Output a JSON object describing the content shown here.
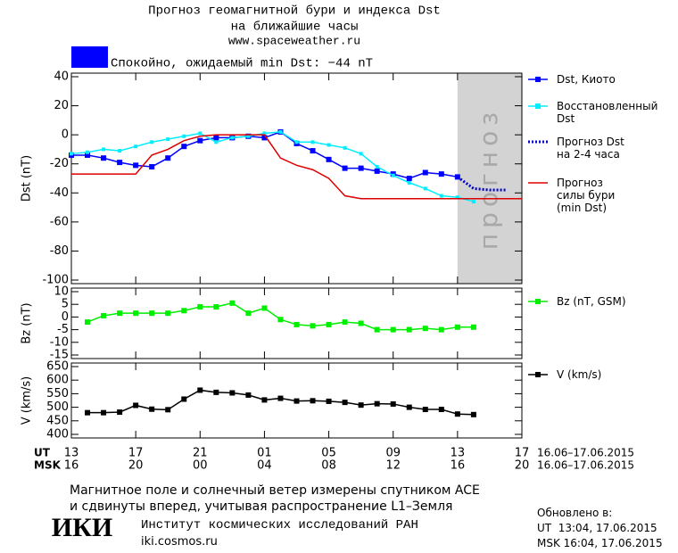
{
  "header": {
    "title": "Прогноз геомагнитной бури и индекса Dst",
    "subtitle": "на ближайшие часы",
    "url": "www.spaceweather.ru",
    "status": "Спокойно, ожидаемый min Dst: −44 nT",
    "status_color": "#0000ff"
  },
  "chart_data": [
    {
      "type": "line",
      "ylabel": "Dst (nT)",
      "xlim": [
        0,
        28
      ],
      "xticks": [
        0,
        4,
        8,
        12,
        16,
        20,
        24,
        28
      ],
      "ylim": [
        -100,
        40
      ],
      "yticks": [
        40,
        20,
        0,
        -20,
        -40,
        -60,
        -80,
        -100
      ],
      "forecast_region": [
        24,
        28
      ],
      "forecast_color": "#d3d3d3",
      "forecast_label": "прогноз",
      "series": [
        {
          "name": "Dst, Киото",
          "color": "#0000ff",
          "marker": "square",
          "style": "solid",
          "x": [
            0,
            1,
            2,
            3,
            4,
            5,
            6,
            7,
            8,
            9,
            10,
            11,
            12,
            13,
            14,
            15,
            16,
            17,
            18,
            19,
            20,
            21,
            22,
            23,
            24
          ],
          "values": [
            -14,
            -14,
            -16,
            -19,
            -21,
            -22,
            -16,
            -8,
            -4,
            -2,
            -2,
            -1,
            -2,
            2,
            -6,
            -11,
            -17,
            -23,
            -23,
            -25,
            -27,
            -30,
            -26,
            -27,
            -29
          ]
        },
        {
          "name": "Восстановленный\nDst",
          "color": "#00eeff",
          "marker": "small-square",
          "style": "solid",
          "x": [
            0,
            1,
            2,
            3,
            4,
            5,
            6,
            7,
            8,
            9,
            10,
            11,
            12,
            13,
            14,
            15,
            16,
            17,
            18,
            19,
            20,
            21,
            22,
            23,
            24,
            25
          ],
          "values": [
            -13,
            -12,
            -10,
            -11,
            -8,
            -5,
            -3,
            -1,
            1,
            -5,
            -2,
            -1,
            1,
            2,
            -5,
            -5,
            -7,
            -9,
            -13,
            -22,
            -28,
            -33,
            -37,
            -42,
            -43,
            -46
          ]
        },
        {
          "name": "Прогноз Dst\nна 2-4 часа",
          "color": "#0000cc",
          "marker": "none",
          "style": "dotted",
          "x": [
            24,
            25,
            26,
            27
          ],
          "values": [
            -29,
            -37,
            -38,
            -38
          ]
        },
        {
          "name": "Прогноз\nсилы бури\n(min Dst)",
          "color": "#dd0000",
          "marker": "none",
          "style": "solid",
          "x": [
            0,
            4,
            5,
            6,
            7,
            8,
            9,
            10,
            11,
            12,
            13,
            14,
            15,
            16,
            17,
            18,
            19,
            20,
            28
          ],
          "values": [
            -27,
            -27,
            -14,
            -10,
            -4,
            -1,
            0,
            0,
            0,
            0,
            -16,
            -21,
            -24,
            -30,
            -42,
            -44,
            -44,
            -44,
            -44
          ]
        }
      ]
    },
    {
      "type": "line",
      "ylabel": "Bz (nT)",
      "xlim": [
        0,
        28
      ],
      "xticks": [
        0,
        4,
        8,
        12,
        16,
        20,
        24,
        28
      ],
      "ylim": [
        -15,
        10
      ],
      "yticks": [
        10,
        5,
        0,
        -5,
        -10,
        -15
      ],
      "series": [
        {
          "name": "Bz (nT, GSM)",
          "color": "#00ee00",
          "marker": "square",
          "style": "solid",
          "x": [
            1,
            2,
            3,
            4,
            5,
            6,
            7,
            8,
            9,
            10,
            11,
            12,
            13,
            14,
            15,
            16,
            17,
            18,
            19,
            20,
            21,
            22,
            23,
            24,
            25
          ],
          "values": [
            -2,
            0.5,
            1.5,
            1.5,
            1.5,
            1.5,
            2.5,
            4,
            4,
            5.5,
            1.5,
            3.5,
            -1,
            -3,
            -3.5,
            -3,
            -2,
            -2.5,
            -5,
            -5,
            -5,
            -4.5,
            -5,
            -4,
            -4
          ]
        }
      ]
    },
    {
      "type": "line",
      "ylabel": "V (km/s)",
      "xlim": [
        0,
        28
      ],
      "ylim": [
        400,
        650
      ],
      "yticks": [
        650,
        600,
        550,
        500,
        450,
        400
      ],
      "xlabel": "UT",
      "x2label": "MSK",
      "xrange_label": "16.06–17.06.2015",
      "xticks": [
        {
          "value": 0,
          "label": "13"
        },
        {
          "value": 4,
          "label": "17"
        },
        {
          "value": 8,
          "label": "21"
        },
        {
          "value": 12,
          "label": "01"
        },
        {
          "value": 16,
          "label": "05"
        },
        {
          "value": 20,
          "label": "09"
        },
        {
          "value": 24,
          "label": "13"
        },
        {
          "value": 28,
          "label": "17"
        }
      ],
      "xticks2": [
        {
          "value": 0,
          "label": "16"
        },
        {
          "value": 4,
          "label": "20"
        },
        {
          "value": 8,
          "label": "00"
        },
        {
          "value": 12,
          "label": "04"
        },
        {
          "value": 16,
          "label": "08"
        },
        {
          "value": 20,
          "label": "12"
        },
        {
          "value": 24,
          "label": "16"
        },
        {
          "value": 28,
          "label": "20"
        }
      ],
      "series": [
        {
          "name": "V (km/s)",
          "color": "#000000",
          "marker": "square",
          "style": "solid",
          "x": [
            1,
            2,
            3,
            4,
            5,
            6,
            7,
            8,
            9,
            10,
            11,
            12,
            13,
            14,
            15,
            16,
            17,
            18,
            19,
            20,
            21,
            22,
            23,
            24,
            25
          ],
          "values": [
            480,
            480,
            482,
            507,
            493,
            491,
            530,
            563,
            555,
            553,
            545,
            527,
            533,
            523,
            524,
            522,
            518,
            508,
            513,
            512,
            500,
            492,
            492,
            475,
            473
          ]
        }
      ]
    }
  ],
  "footer": {
    "note": "Магнитное поле и солнечный ветер измерены спутником ACE\nи сдвинуты вперед, учитывая распространение L1–Земля",
    "logo": "ИКИ",
    "institute": "Институт космических исследований РАН",
    "site": "iki.cosmos.ru",
    "updated_label": "Обновлено в:",
    "updated_ut": "UT  13:04, 17.06.2015",
    "updated_msk": "MSK 16:04, 17.06.2015"
  }
}
